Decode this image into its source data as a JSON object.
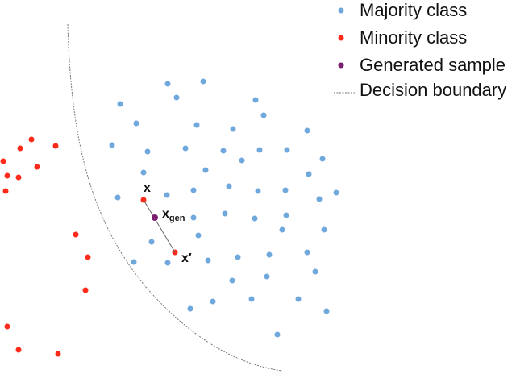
{
  "legend": {
    "majority": "Majority class",
    "minority": "Minority class",
    "generated": "Generated sample",
    "boundary": "Decision boundary"
  },
  "labels": {
    "x": "x",
    "x_gen_base": "x",
    "x_gen_sub": "gen",
    "x_prime": "x′"
  },
  "colors": {
    "majority": "#6fa8dc",
    "minority": "#ff2a1a",
    "generated": "#7b1f6e",
    "boundary": "#777777",
    "segment": "#666666"
  }
}
